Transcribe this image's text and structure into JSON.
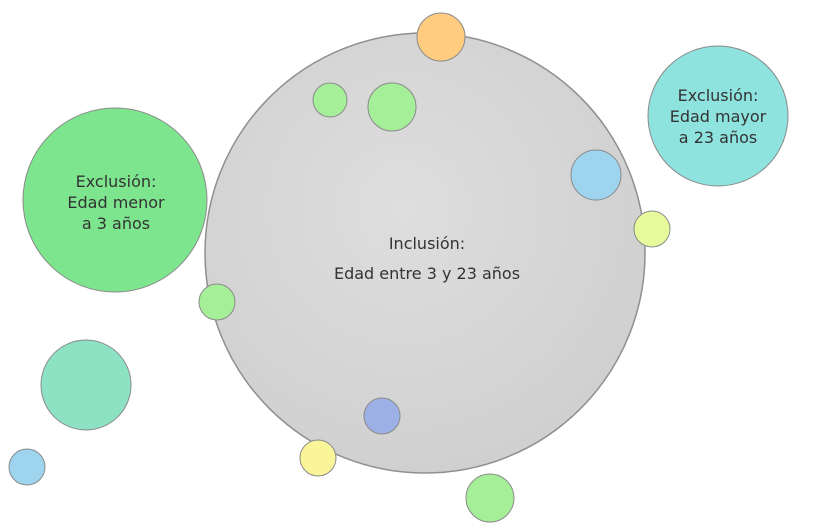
{
  "inclusion": {
    "title": "Inclusión:",
    "subtitle": "Edad entre 3 y 23 años",
    "color": "#d6d6d6"
  },
  "exclusion_left": {
    "lines": [
      "Exclusión:",
      "Edad menor",
      "a 3 años"
    ],
    "color": "#7ee58f"
  },
  "exclusion_right": {
    "lines": [
      "Exclusión:",
      "Edad mayor",
      "a 23 años"
    ],
    "color": "#8ee3de"
  },
  "colors": {
    "orange": "#ffcc80",
    "green": "#a6ef99",
    "blue": "#9fd4ee",
    "lime": "#e6fa9c",
    "teal": "#8ee2c4",
    "navy": "#9db0e6",
    "yellow": "#fbf59a",
    "outline": "#8a8a8a"
  }
}
